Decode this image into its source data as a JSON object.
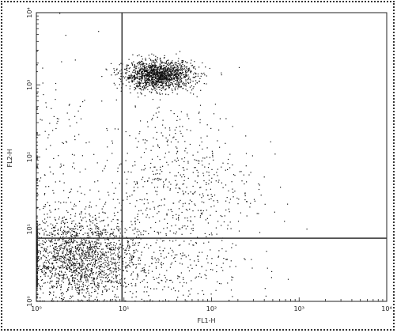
{
  "chart_data": {
    "type": "scatter",
    "title": "",
    "xlabel": "FL1-H",
    "ylabel": "FL2-H",
    "x_scale": "log",
    "y_scale": "log",
    "xlim": [
      1,
      10000
    ],
    "ylim": [
      1,
      10000
    ],
    "x_ticks": [
      "10⁰",
      "10¹",
      "10²",
      "10³",
      "10⁴"
    ],
    "y_ticks": [
      "10⁰",
      "10¹",
      "10²",
      "10³",
      "10⁴"
    ],
    "gate": {
      "x": 9.5,
      "y": 7.5
    },
    "grid": false,
    "legend": "none",
    "point_color": "#111111",
    "populations": [
      {
        "label": "",
        "x_center": 25,
        "y_center": 1350,
        "x_spread_log": 0.2,
        "y_spread_log": 0.1,
        "count": 1500
      },
      {
        "label": "",
        "x_center": 3,
        "y_center": 4,
        "x_spread_log": 0.34,
        "y_spread_log": 0.3,
        "count": 1800
      },
      {
        "label": "",
        "x_center": 40,
        "y_center": 40,
        "x_spread_log": 0.45,
        "y_spread_log": 0.6,
        "count": 650
      },
      {
        "label": "",
        "x_center": 1.5,
        "y_center": 60,
        "x_spread_log": 0.25,
        "y_spread_log": 0.8,
        "count": 180
      },
      {
        "label": "",
        "x_center": 25,
        "y_center": 3,
        "x_spread_log": 0.5,
        "y_spread_log": 0.25,
        "count": 250
      }
    ]
  }
}
